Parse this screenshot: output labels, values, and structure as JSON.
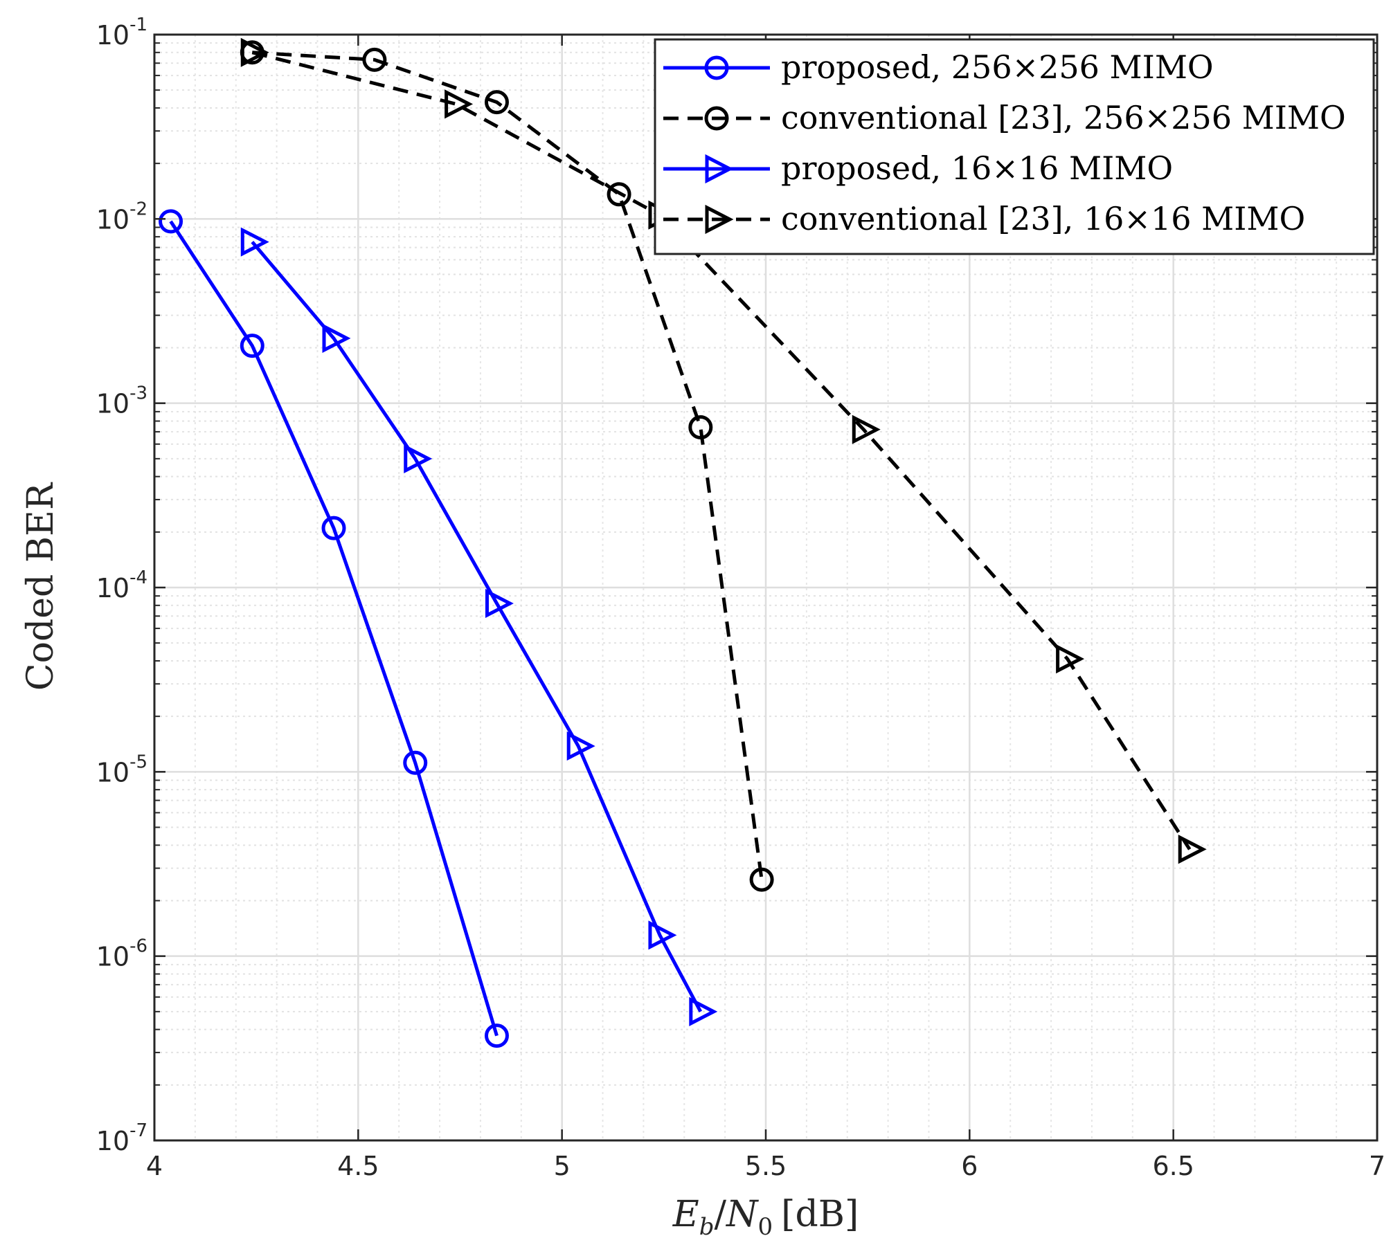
{
  "chart_data": {
    "type": "line",
    "title": "",
    "xlabel": "Eb/N0 [dB]",
    "xlabel_parts": {
      "E": "E",
      "b": "b",
      "slash": "/",
      "N": "N",
      "zero": "0",
      "unit": "[dB]"
    },
    "ylabel": "Coded BER",
    "xlim": [
      4,
      7
    ],
    "ylim": [
      1e-07,
      0.1
    ],
    "yscale": "log",
    "grid": true,
    "minor_grid": true,
    "legend_position": "top-right",
    "x_ticks": [
      "4",
      "4.5",
      "5",
      "5.5",
      "6",
      "6.5",
      "7"
    ],
    "x_tick_values": [
      4,
      4.5,
      5,
      5.5,
      6,
      6.5,
      7
    ],
    "y_ticks": [
      {
        "base": "10",
        "exp": "-1",
        "value": 0.1
      },
      {
        "base": "10",
        "exp": "-2",
        "value": 0.01
      },
      {
        "base": "10",
        "exp": "-3",
        "value": 0.001
      },
      {
        "base": "10",
        "exp": "-4",
        "value": 0.0001
      },
      {
        "base": "10",
        "exp": "-5",
        "value": 1e-05
      },
      {
        "base": "10",
        "exp": "-6",
        "value": 1e-06
      },
      {
        "base": "10",
        "exp": "-7",
        "value": 1e-07
      }
    ],
    "series": [
      {
        "name": "proposed, 256×256 MIMO",
        "color": "#0000ff",
        "dash": "solid",
        "marker": "circle",
        "x": [
          4.04,
          4.24,
          4.44,
          4.64,
          4.84
        ],
        "y": [
          0.0097,
          0.00205,
          0.00021,
          1.12e-05,
          3.7e-07
        ]
      },
      {
        "name": "conventional [23], 256×256 MIMO",
        "color": "#000000",
        "dash": "dashed",
        "marker": "circle",
        "x": [
          4.24,
          4.54,
          4.84,
          5.14,
          5.34,
          5.49
        ],
        "y": [
          0.08,
          0.073,
          0.043,
          0.0136,
          0.00074,
          2.6e-06
        ]
      },
      {
        "name": "proposed, 16×16 MIMO",
        "color": "#0000ff",
        "dash": "solid",
        "marker": "triangle-right",
        "x": [
          4.24,
          4.44,
          4.64,
          4.84,
          5.04,
          5.24,
          5.34
        ],
        "y": [
          0.0075,
          0.00225,
          0.0005,
          8.2e-05,
          1.38e-05,
          1.3e-06,
          5e-07
        ]
      },
      {
        "name": "conventional [23], 16×16 MIMO",
        "color": "#000000",
        "dash": "dashed",
        "marker": "triangle-right",
        "x": [
          4.24,
          4.74,
          5.24,
          5.74,
          6.24,
          6.54
        ],
        "y": [
          0.08,
          0.042,
          0.0105,
          0.00072,
          4.1e-05,
          3.8e-06
        ]
      }
    ]
  }
}
